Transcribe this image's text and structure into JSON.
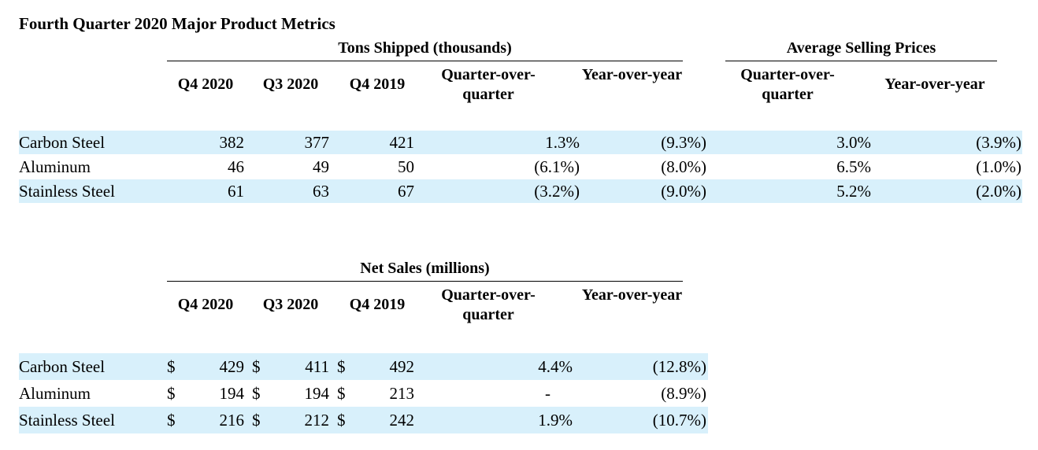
{
  "title": "Fourth Quarter 2020 Major Product Metrics",
  "tons_shipped": {
    "group_label": "Tons Shipped (thousands)",
    "columns": [
      "Q4 2020",
      "Q3 2020",
      "Q4 2019",
      "Quarter-over-quarter",
      "Year-over-year"
    ],
    "rows": [
      {
        "label": "Carbon Steel",
        "q4_2020": "382",
        "q3_2020": "377",
        "q4_2019": "421",
        "qoq": "1.3%",
        "yoy": "(9.3%)"
      },
      {
        "label": "Aluminum",
        "q4_2020": "46",
        "q3_2020": "49",
        "q4_2019": "50",
        "qoq": "(6.1%)",
        "yoy": "(8.0%)"
      },
      {
        "label": "Stainless Steel",
        "q4_2020": "61",
        "q3_2020": "63",
        "q4_2019": "67",
        "qoq": "(3.2%)",
        "yoy": "(9.0%)"
      }
    ]
  },
  "average_selling_prices": {
    "group_label": "Average Selling Prices",
    "columns": [
      "Quarter-over-quarter",
      "Year-over-year"
    ],
    "rows": [
      {
        "qoq": "3.0%",
        "yoy": "(3.9%)"
      },
      {
        "qoq": "6.5%",
        "yoy": "(1.0%)"
      },
      {
        "qoq": "5.2%",
        "yoy": "(2.0%)"
      }
    ]
  },
  "net_sales": {
    "group_label": "Net Sales (millions)",
    "currency": "$",
    "columns": [
      "Q4 2020",
      "Q3 2020",
      "Q4 2019",
      "Quarter-over-quarter",
      "Year-over-year"
    ],
    "rows": [
      {
        "label": "Carbon Steel",
        "q4_2020": "429",
        "q3_2020": "411",
        "q4_2019": "492",
        "qoq": "4.4%",
        "yoy": "(12.8%)"
      },
      {
        "label": "Aluminum",
        "q4_2020": "194",
        "q3_2020": "194",
        "q4_2019": "213",
        "qoq": "-",
        "yoy": "(8.9%)"
      },
      {
        "label": "Stainless Steel",
        "q4_2020": "216",
        "q3_2020": "212",
        "q4_2019": "242",
        "qoq": "1.9%",
        "yoy": "(10.7%)"
      }
    ]
  }
}
